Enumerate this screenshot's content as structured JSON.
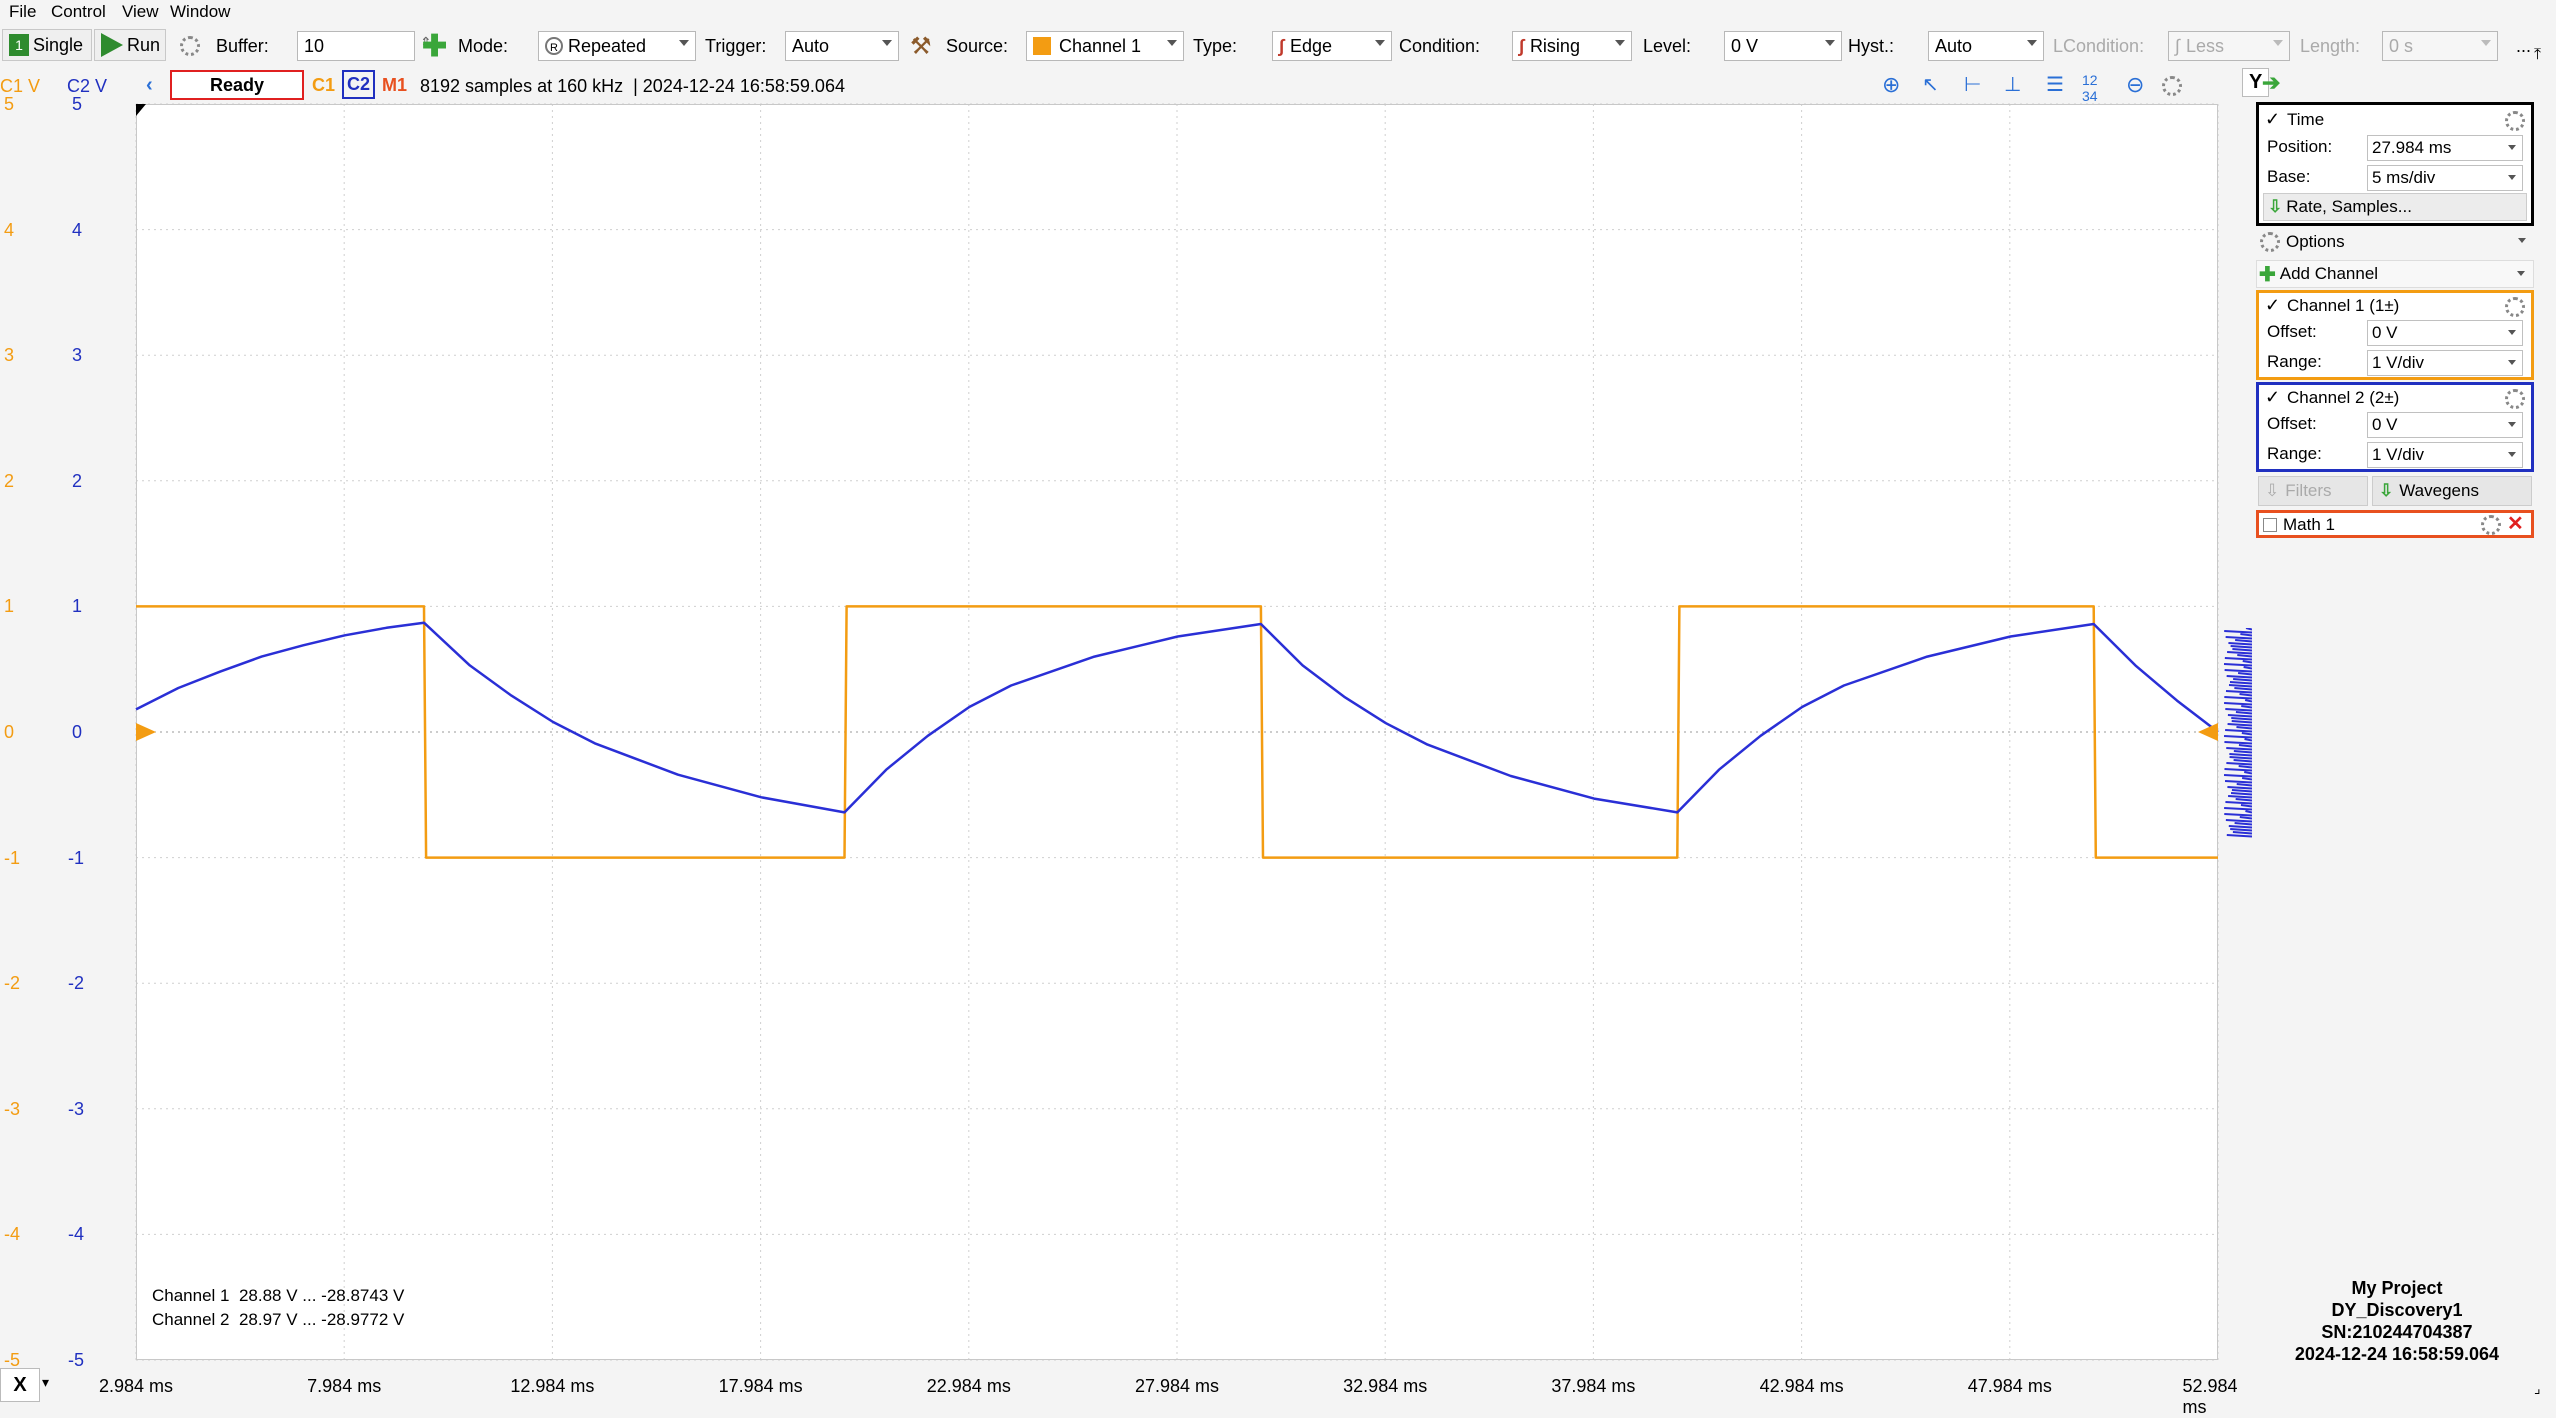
{
  "menu": [
    "File",
    "Control",
    "View",
    "Window"
  ],
  "toolbar": {
    "single_label": "Single",
    "run_label": "Run",
    "buffer_label": "Buffer:",
    "buffer_value": "10",
    "mode_label": "Mode:",
    "mode_value": "Repeated",
    "trigger_label": "Trigger:",
    "trigger_value": "Auto",
    "source_label": "Source:",
    "source_value": "Channel 1",
    "type_label": "Type:",
    "type_value": "Edge",
    "condition_label": "Condition:",
    "condition_value": "Rising",
    "level_label": "Level:",
    "level_value": "0 V",
    "hyst_label": "Hyst.:",
    "hyst_value": "Auto",
    "lcondition_label": "LCondition:",
    "lcondition_value": "Less",
    "length_label": "Length:",
    "length_value": "0 s",
    "more_label": "..."
  },
  "status": {
    "c1_axis_label": "C1 V",
    "c2_axis_label": "C2 V",
    "state": "Ready",
    "c1_tag": "C1",
    "c2_tag": "C2",
    "m1_tag": "M1",
    "info": "8192 samples at 160 kHz  | 2024-12-24 16:58:59.064",
    "y_button": "Y"
  },
  "colors": {
    "channel1": "#f39c12",
    "channel2": "#2a2fd6",
    "math1": "#e8501f",
    "status_border": "#e02020"
  },
  "plot": {
    "c1_ticks": [
      "5",
      "4",
      "3",
      "2",
      "1",
      "0",
      "-1",
      "-2",
      "-3",
      "-4",
      "-5"
    ],
    "c2_ticks": [
      "5",
      "4",
      "3",
      "2",
      "1",
      "0",
      "-1",
      "-2",
      "-3",
      "-4",
      "-5"
    ],
    "x_ticks": [
      "2.984 ms",
      "7.984 ms",
      "12.984 ms",
      "17.984 ms",
      "22.984 ms",
      "27.984 ms",
      "32.984 ms",
      "37.984 ms",
      "42.984 ms",
      "47.984 ms",
      "52.984 ms"
    ],
    "x_button": "X",
    "readout_c1": "Channel 1  28.88 V ... -28.8743 V",
    "readout_c2": "Channel 2  28.97 V ... -28.9772 V"
  },
  "chart_data": {
    "type": "line",
    "xlabel": "",
    "ylabel": "",
    "xlim": [
      2.984,
      52.984
    ],
    "ylim": [
      -5,
      5
    ],
    "grid": true,
    "series": [
      {
        "name": "Channel 1",
        "x": [
          2.984,
          9.9,
          9.95,
          20.0,
          20.05,
          30.0,
          30.05,
          40.0,
          40.05,
          50.0,
          50.05,
          52.984
        ],
        "y": [
          1.0,
          1.0,
          -1.0,
          -1.0,
          1.0,
          1.0,
          -1.0,
          -1.0,
          1.0,
          1.0,
          -1.0,
          -1.0
        ]
      },
      {
        "name": "Channel 2",
        "x": [
          2.984,
          4.0,
          5.0,
          6.0,
          7.0,
          8.0,
          9.0,
          9.9,
          11.0,
          12.0,
          13.0,
          14.0,
          16.0,
          18.0,
          20.0,
          21.0,
          22.0,
          23.0,
          24.0,
          26.0,
          28.0,
          30.0,
          31.0,
          32.0,
          33.0,
          34.0,
          36.0,
          38.0,
          40.0,
          41.0,
          42.0,
          43.0,
          44.0,
          46.0,
          48.0,
          50.0,
          51.0,
          52.0,
          52.984
        ],
        "y": [
          0.18,
          0.35,
          0.48,
          0.6,
          0.69,
          0.77,
          0.83,
          0.87,
          0.53,
          0.29,
          0.08,
          -0.09,
          -0.34,
          -0.52,
          -0.64,
          -0.3,
          -0.03,
          0.2,
          0.37,
          0.6,
          0.76,
          0.86,
          0.53,
          0.28,
          0.07,
          -0.1,
          -0.35,
          -0.53,
          -0.64,
          -0.3,
          -0.03,
          0.2,
          0.37,
          0.6,
          0.76,
          0.86,
          0.53,
          0.25,
          0.0
        ]
      }
    ]
  },
  "panel": {
    "time_label": "Time",
    "position_label": "Position:",
    "position_value": "27.984 ms",
    "base_label": "Base:",
    "base_value": "5 ms/div",
    "rate_label": "Rate, Samples...",
    "options_label": "Options",
    "add_channel_label": "Add Channel",
    "ch1_label": "Channel 1 (1±)",
    "ch1_offset_label": "Offset:",
    "ch1_offset_value": "0 V",
    "ch1_range_label": "Range:",
    "ch1_range_value": "1 V/div",
    "ch2_label": "Channel 2 (2±)",
    "ch2_offset_label": "Offset:",
    "ch2_offset_value": "0 V",
    "ch2_range_label": "Range:",
    "ch2_range_value": "1 V/div",
    "filters_label": "Filters",
    "wavegens_label": "Wavegens",
    "math_label": "Math 1"
  },
  "project": {
    "name": "My Project",
    "device": "DY_Discovery1",
    "serial": "SN:210244704387",
    "timestamp": "2024-12-24 16:58:59.064"
  }
}
